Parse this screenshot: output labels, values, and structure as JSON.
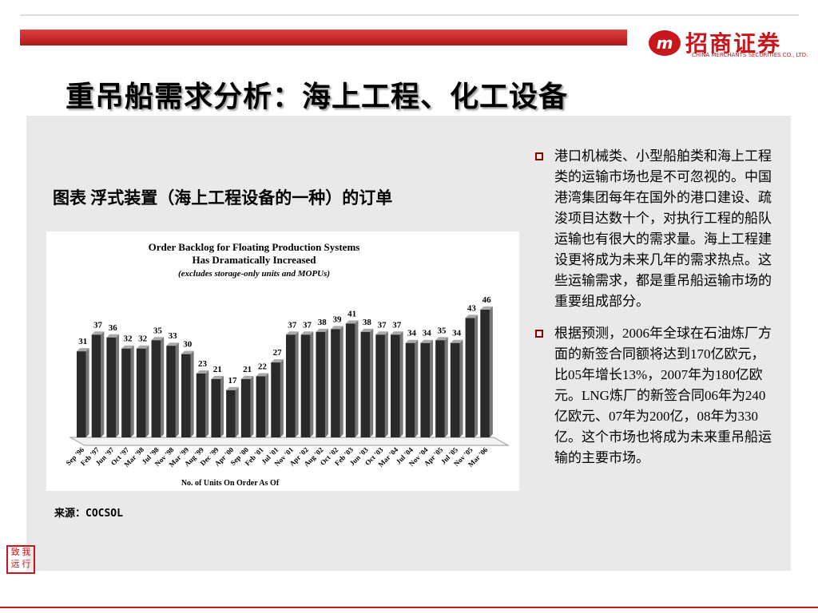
{
  "logo": {
    "name": "招商证券",
    "subtitle": "CHINA MERCHANTS SECURITIES CO., LTD."
  },
  "title": "重吊船需求分析：海上工程、化工设备",
  "caption": "图表  浮式装置（海上工程设备的一种）的订单",
  "source": "来源：COCSOL",
  "bullets": [
    "港口机械类、小型船舶类和海上工程类的运输市场也是不可忽视的。中国港湾集团每年在国外的港口建设、疏浚项目达数十个，对执行工程的船队运输也有很大的需求量。海上工程建设更将成为未来几年的需求热点。这些运输需求，都是重吊船运输市场的重要组成部分。",
    "根据预测，2006年全球在石油炼厂方面的新签合同额将达到170亿欧元，比05年增长13%，2007年为180亿欧元。LNG炼厂的新签合同06年为240亿欧元、07年为200亿，08年为330亿。这个市场也将成为未来重吊船运输的主要市场。"
  ],
  "chart_data": {
    "type": "bar",
    "title": "Order Backlog for Floating Production Systems",
    "subtitle": "Has Dramatically Increased",
    "note": "(excludes storage-only units and MOPUs)",
    "x_label": "No. of Units On Order As Of",
    "categories": [
      "Sep '96",
      "Feb '97",
      "Jun '97",
      "Oct '97",
      "Mar '98",
      "Jul '98",
      "Nov '98",
      "Mar '99",
      "Aug '99",
      "Dec '99",
      "Apr '00",
      "Sep '00",
      "Feb '01",
      "Jul '01",
      "Nov '01",
      "Apr '02",
      "Aug '02",
      "Oct '02",
      "Feb '03",
      "Jun '03",
      "Oct '03",
      "Mar '04",
      "Jul '04",
      "Nov '04",
      "Apr '05",
      "Jul '05",
      "Nov '05",
      "Mar '06"
    ],
    "values": [
      31,
      37,
      36,
      32,
      32,
      35,
      33,
      30,
      23,
      21,
      17,
      21,
      22,
      27,
      37,
      37,
      38,
      39,
      41,
      38,
      37,
      37,
      34,
      34,
      35,
      34,
      43,
      46
    ],
    "color": "#2a2a2a"
  }
}
